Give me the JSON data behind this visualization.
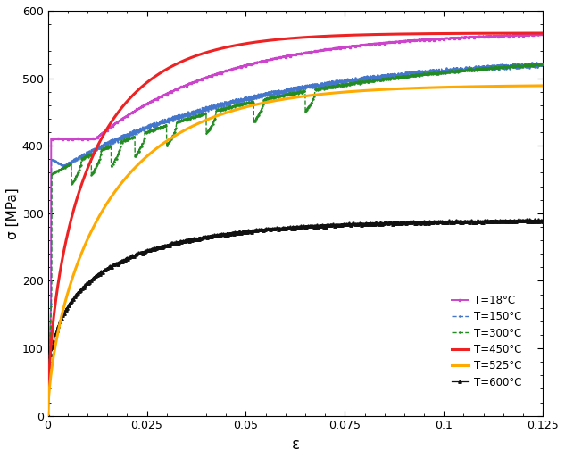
{
  "title": "",
  "xlabel": "ε",
  "ylabel": "σ [MPa]",
  "xlim": [
    0,
    0.125
  ],
  "ylim": [
    0,
    600
  ],
  "xticks": [
    0,
    0.025,
    0.05,
    0.075,
    0.1,
    0.125
  ],
  "yticks": [
    0,
    100,
    200,
    300,
    400,
    500,
    600
  ],
  "curves": {
    "T18": {
      "label": "T=18°C",
      "color": "#cc44cc",
      "lw": 1.4
    },
    "T150": {
      "label": "T=150°C",
      "color": "#4477cc",
      "lw": 1.0
    },
    "T300": {
      "label": "T=300°C",
      "color": "#228B22",
      "lw": 1.0
    },
    "T450": {
      "label": "T=450°C",
      "color": "#ee2222",
      "lw": 2.2
    },
    "T525": {
      "label": "T=525°C",
      "color": "#ffaa00",
      "lw": 2.2
    },
    "T600": {
      "label": "T=600°C",
      "color": "#111111",
      "lw": 0.9
    }
  }
}
